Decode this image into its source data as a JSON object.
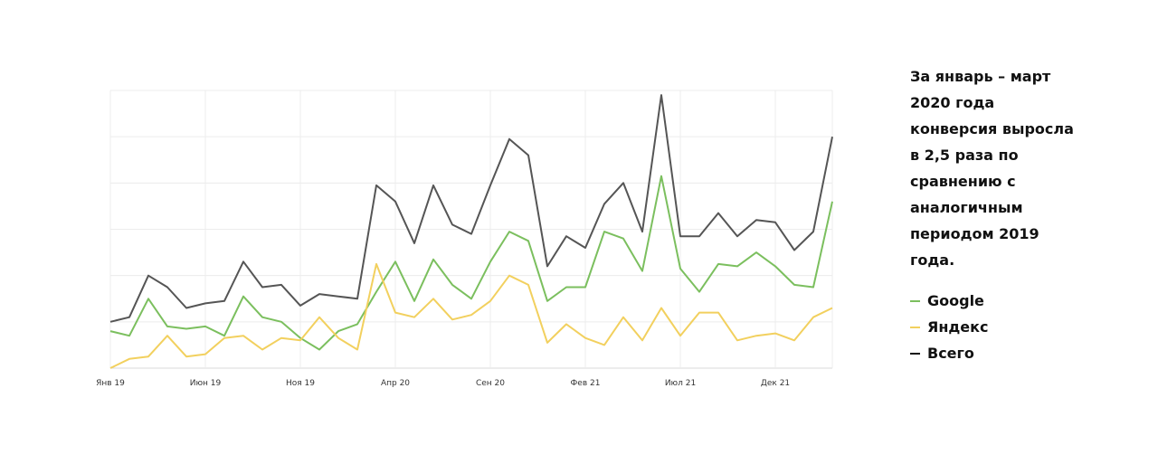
{
  "description": "За январь – март 2020 года конверсия выросла в 2,5 раза по сравнению с аналогичным периодом 2019 года.",
  "chart_data": {
    "type": "line",
    "x": [
      "Янв 19",
      "Фев 19",
      "Мар 19",
      "Апр 19",
      "Май 19",
      "Июн 19",
      "Июл 19",
      "Авг 19",
      "Сен 19",
      "Окт 19",
      "Ноя 19",
      "Дек 19",
      "Янв 20",
      "Фев 20",
      "Мар 20",
      "Апр 20",
      "Май 20",
      "Июн 20",
      "Июл 20",
      "Авг 20",
      "Сен 20",
      "Окт 20",
      "Ноя 20",
      "Дек 20",
      "Янв 21",
      "Фев 21",
      "Мар 21",
      "Апр 21",
      "Май 21",
      "Июн 21",
      "Июл 21",
      "Авг 21",
      "Сен 21",
      "Окт 21",
      "Ноя 21",
      "Дек 21",
      "Янв 22",
      "Фев 22",
      "Мар 22"
    ],
    "tick_labels": [
      {
        "label": "Янв 19",
        "index": 0
      },
      {
        "label": "Июн 19",
        "index": 5
      },
      {
        "label": "Ноя 19",
        "index": 10
      },
      {
        "label": "Апр 20",
        "index": 15
      },
      {
        "label": "Сен 20",
        "index": 20
      },
      {
        "label": "Фев 21",
        "index": 25
      },
      {
        "label": "Июл 21",
        "index": 30
      },
      {
        "label": "Дек 21",
        "index": 35
      }
    ],
    "ylim": [
      0,
      6
    ],
    "grid": true,
    "series": [
      {
        "name": "Google",
        "color": "#7bbf5e",
        "values": [
          0.8,
          0.7,
          1.5,
          0.9,
          0.85,
          0.9,
          0.7,
          1.55,
          1.1,
          1.0,
          0.65,
          0.4,
          0.8,
          0.95,
          1.65,
          2.3,
          1.45,
          2.35,
          1.8,
          1.5,
          2.3,
          2.95,
          2.75,
          1.45,
          1.75,
          1.75,
          2.95,
          2.8,
          2.1,
          4.15,
          2.15,
          1.65,
          2.25,
          2.2,
          2.5,
          2.2,
          1.8,
          1.75,
          3.6
        ]
      },
      {
        "name": "Яндекс",
        "color": "#f2d05e",
        "values": [
          0.0,
          0.2,
          0.25,
          0.7,
          0.25,
          0.3,
          0.65,
          0.7,
          0.4,
          0.65,
          0.6,
          1.1,
          0.65,
          0.4,
          2.25,
          1.2,
          1.1,
          1.5,
          1.05,
          1.15,
          1.45,
          2.0,
          1.8,
          0.55,
          0.95,
          0.65,
          0.5,
          1.1,
          0.6,
          1.3,
          0.7,
          1.2,
          1.2,
          0.6,
          0.7,
          0.75,
          0.6,
          1.1,
          1.3
        ]
      },
      {
        "name": "Всего",
        "color": "#555555",
        "values": [
          1.0,
          1.1,
          2.0,
          1.75,
          1.3,
          1.4,
          1.45,
          2.3,
          1.75,
          1.8,
          1.35,
          1.6,
          1.55,
          1.5,
          3.95,
          3.6,
          2.7,
          3.95,
          3.1,
          2.9,
          3.95,
          4.95,
          4.6,
          2.2,
          2.85,
          2.6,
          3.55,
          4.0,
          2.95,
          5.9,
          2.85,
          2.85,
          3.35,
          2.85,
          3.2,
          3.15,
          2.55,
          2.95,
          5.0
        ]
      }
    ]
  }
}
